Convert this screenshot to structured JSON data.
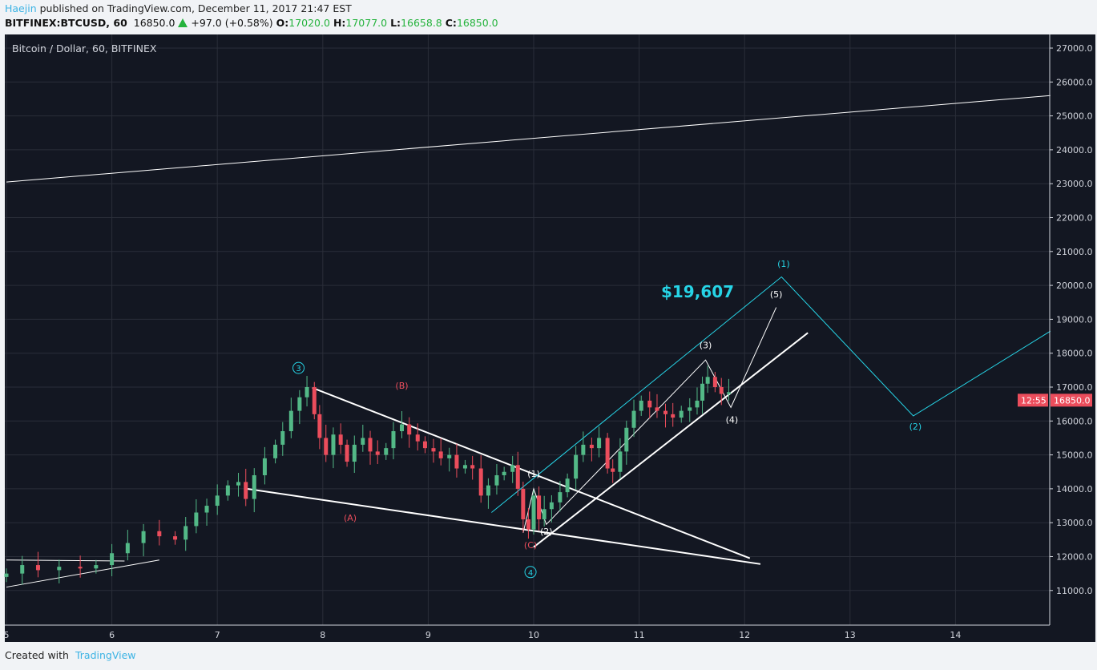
{
  "header": {
    "author": "Haejin",
    "published": "published on TradingView.com, December 11, 2017 21:47 EST",
    "symbol": "BITFINEX:BTCUSD, 60",
    "last": "16850.0",
    "change": "+97.0 (+0.58%)",
    "o_label": "O:",
    "o": "17020.0",
    "h_label": "H:",
    "h": "17077.0",
    "l_label": "L:",
    "l": "16658.8",
    "c_label": "C:",
    "c": "16850.0"
  },
  "footer": {
    "created": "Created with",
    "brand": "TradingView"
  },
  "chart_data": {
    "type": "candlestick",
    "title": "Bitcoin / Dollar, 60, BITFINEX",
    "xlim": [
      4.94,
      14.9
    ],
    "ylim": [
      10000,
      27400
    ],
    "x_ticks": [
      "5",
      "6",
      "7",
      "8",
      "9",
      "10",
      "11",
      "12",
      "13",
      "14"
    ],
    "y_ticks": [
      "11000.0",
      "12000.0",
      "13000.0",
      "14000.0",
      "15000.0",
      "16000.0",
      "17000.0",
      "18000.0",
      "19000.0",
      "20000.0",
      "21000.0",
      "22000.0",
      "23000.0",
      "24000.0",
      "25000.0",
      "26000.0",
      "27000.0"
    ],
    "price_label": "16850.0",
    "countdown": "12:55",
    "colors": {
      "up": "#53b987",
      "down": "#eb4d5c",
      "bg": "#131722",
      "grid": "#2a2e39",
      "cyan": "#26d4e6",
      "red": "#eb4d5c"
    },
    "closes": [
      [
        5,
        11500
      ],
      [
        5.15,
        11750
      ],
      [
        5.3,
        11600
      ],
      [
        5.5,
        11700
      ],
      [
        5.7,
        11650
      ],
      [
        5.85,
        11750
      ],
      [
        6,
        12100
      ],
      [
        6.15,
        12400
      ],
      [
        6.3,
        12750
      ],
      [
        6.45,
        12600
      ],
      [
        6.6,
        12500
      ],
      [
        6.7,
        12900
      ],
      [
        6.8,
        13300
      ],
      [
        6.9,
        13500
      ],
      [
        7,
        13800
      ],
      [
        7.1,
        14100
      ],
      [
        7.2,
        14200
      ],
      [
        7.27,
        13700
      ],
      [
        7.35,
        14400
      ],
      [
        7.45,
        14900
      ],
      [
        7.55,
        15300
      ],
      [
        7.62,
        15700
      ],
      [
        7.7,
        16300
      ],
      [
        7.78,
        16700
      ],
      [
        7.85,
        17000
      ],
      [
        7.92,
        16200
      ],
      [
        7.97,
        15500
      ],
      [
        8.03,
        15000
      ],
      [
        8.1,
        15600
      ],
      [
        8.17,
        15300
      ],
      [
        8.23,
        14800
      ],
      [
        8.3,
        15300
      ],
      [
        8.38,
        15500
      ],
      [
        8.45,
        15100
      ],
      [
        8.52,
        15000
      ],
      [
        8.6,
        15200
      ],
      [
        8.67,
        15700
      ],
      [
        8.75,
        15900
      ],
      [
        8.82,
        15600
      ],
      [
        8.9,
        15400
      ],
      [
        8.97,
        15200
      ],
      [
        9.05,
        15100
      ],
      [
        9.12,
        14900
      ],
      [
        9.2,
        15000
      ],
      [
        9.27,
        14600
      ],
      [
        9.35,
        14700
      ],
      [
        9.42,
        14600
      ],
      [
        9.5,
        13800
      ],
      [
        9.57,
        14100
      ],
      [
        9.65,
        14400
      ],
      [
        9.72,
        14500
      ],
      [
        9.8,
        14700
      ],
      [
        9.85,
        14000
      ],
      [
        9.9,
        13100
      ],
      [
        9.95,
        12800
      ],
      [
        10,
        13800
      ],
      [
        10.05,
        13100
      ],
      [
        10.1,
        13400
      ],
      [
        10.17,
        13600
      ],
      [
        10.25,
        13900
      ],
      [
        10.32,
        14300
      ],
      [
        10.4,
        15000
      ],
      [
        10.47,
        15300
      ],
      [
        10.55,
        15200
      ],
      [
        10.62,
        15500
      ],
      [
        10.7,
        14600
      ],
      [
        10.75,
        14500
      ],
      [
        10.82,
        15100
      ],
      [
        10.88,
        15800
      ],
      [
        10.95,
        16300
      ],
      [
        11.02,
        16600
      ],
      [
        11.1,
        16400
      ],
      [
        11.17,
        16300
      ],
      [
        11.25,
        16200
      ],
      [
        11.32,
        16100
      ],
      [
        11.4,
        16300
      ],
      [
        11.48,
        16400
      ],
      [
        11.55,
        16600
      ],
      [
        11.6,
        17100
      ],
      [
        11.65,
        17300
      ],
      [
        11.72,
        17000
      ],
      [
        11.78,
        16800
      ],
      [
        11.85,
        16850
      ]
    ],
    "lines": [
      {
        "color": "white",
        "points": [
          [
            5,
            23050
          ],
          [
            14.9,
            25600
          ]
        ]
      },
      {
        "color": "white",
        "points": [
          [
            5,
            11900
          ],
          [
            6.12,
            11870
          ]
        ]
      },
      {
        "color": "white",
        "points": [
          [
            5,
            11100
          ],
          [
            6.45,
            11900
          ]
        ]
      },
      {
        "color": "white",
        "points": [
          [
            7.9,
            16980
          ],
          [
            12.05,
            11950
          ]
        ],
        "bold": true
      },
      {
        "color": "white",
        "points": [
          [
            7.28,
            14000
          ],
          [
            12.15,
            11780
          ]
        ],
        "bold": true
      },
      {
        "color": "white",
        "points": [
          [
            10,
            12280
          ],
          [
            12.6,
            18600
          ]
        ],
        "bold": true
      },
      {
        "color": "white",
        "points": [
          [
            9.9,
            12700
          ],
          [
            10,
            14000
          ],
          [
            10.12,
            12950
          ],
          [
            11.63,
            17800
          ],
          [
            11.87,
            16400
          ],
          [
            12.3,
            19350
          ]
        ]
      },
      {
        "color": "cyan",
        "points": [
          [
            9.6,
            13300
          ],
          [
            12.35,
            20250
          ],
          [
            13.6,
            16150
          ],
          [
            14.9,
            18650
          ]
        ]
      }
    ],
    "annotations": [
      {
        "text": "3",
        "x": 7.77,
        "y": 17470,
        "color": "cyan",
        "circle": true
      },
      {
        "text": "4",
        "x": 9.97,
        "y": 11450,
        "color": "cyan",
        "circle": true
      },
      {
        "text": "(A)",
        "x": 8.26,
        "y": 13050,
        "color": "red"
      },
      {
        "text": "(B)",
        "x": 8.75,
        "y": 16950,
        "color": "red"
      },
      {
        "text": "(C)",
        "x": 9.97,
        "y": 12250,
        "color": "red"
      },
      {
        "text": "(1)",
        "x": 10,
        "y": 14350,
        "color": "white"
      },
      {
        "text": "(2)",
        "x": 10.12,
        "y": 12650,
        "color": "white"
      },
      {
        "text": "(3)",
        "x": 11.63,
        "y": 18150,
        "color": "white"
      },
      {
        "text": "(4)",
        "x": 11.88,
        "y": 15950,
        "color": "white"
      },
      {
        "text": "(5)",
        "x": 12.3,
        "y": 19650,
        "color": "white"
      },
      {
        "text": "(1)",
        "x": 12.37,
        "y": 20550,
        "color": "cyan"
      },
      {
        "text": "(2)",
        "x": 13.62,
        "y": 15750,
        "color": "cyan"
      },
      {
        "text": "$19,607",
        "x": 11.55,
        "y": 19650,
        "color": "cyan",
        "big": true
      }
    ]
  }
}
